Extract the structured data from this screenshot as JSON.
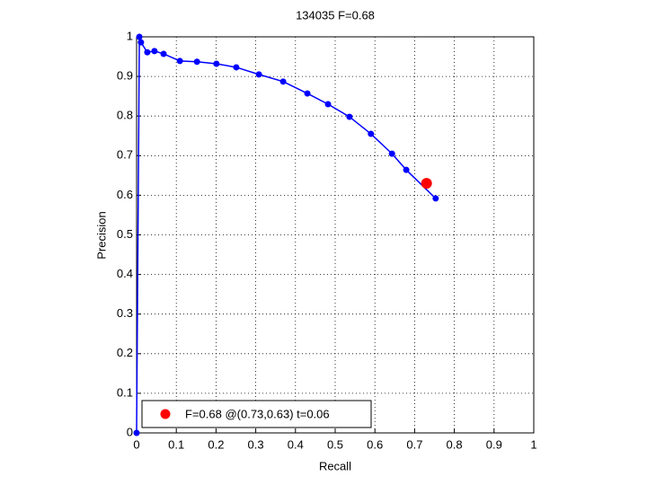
{
  "chart_data": {
    "type": "line",
    "title": "134035 F=0.68",
    "x_label": "Recall",
    "y_label": "Precision",
    "xlim": [
      0,
      1
    ],
    "ylim": [
      0,
      1
    ],
    "xticks": [
      0,
      0.1,
      0.2,
      0.3,
      0.4,
      0.5,
      0.6,
      0.7,
      0.8,
      0.9,
      1
    ],
    "yticks": [
      0,
      0.1,
      0.2,
      0.3,
      0.4,
      0.5,
      0.6,
      0.7,
      0.8,
      0.9,
      1
    ],
    "grid": true,
    "legend": "lower left",
    "series": [
      {
        "color": "#0000ff",
        "x": [
          0,
          0.007,
          0.011,
          0.027,
          0.045,
          0.068,
          0.109,
          0.152,
          0.201,
          0.251,
          0.308,
          0.369,
          0.43,
          0.482,
          0.536,
          0.59,
          0.643,
          0.679,
          0.753
        ],
        "values": [
          0,
          1.0,
          0.986,
          0.961,
          0.964,
          0.957,
          0.939,
          0.937,
          0.932,
          0.923,
          0.905,
          0.887,
          0.857,
          0.83,
          0.798,
          0.755,
          0.705,
          0.664,
          0.592
        ]
      },
      {
        "name": "F=0.68 @(0.73,0.63) t=0.06",
        "color": "#ff0000",
        "x": [
          0.73
        ],
        "values": [
          0.63
        ]
      }
    ]
  }
}
